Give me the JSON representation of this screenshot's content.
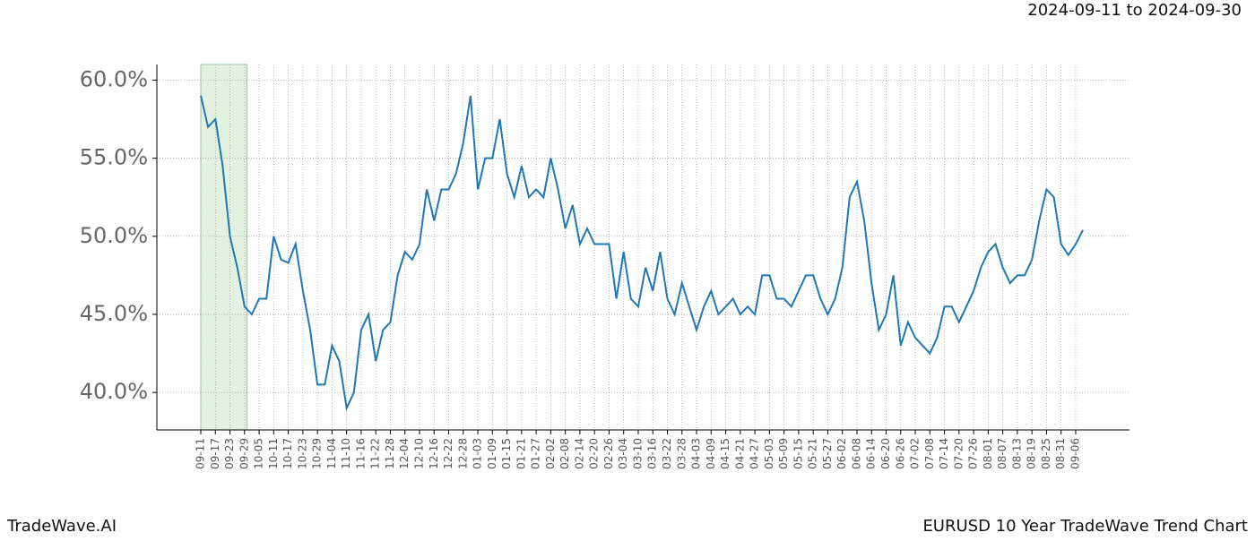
{
  "chart_data": {
    "type": "line",
    "subtitle": "2024-09-11 to 2024-09-30",
    "footer_left": "TradeWave.AI",
    "title": "EURUSD 10 Year TradeWave Trend Chart",
    "categories": [
      "09-11",
      null,
      "09-17",
      null,
      "09-23",
      null,
      "09-29",
      null,
      "10-05",
      null,
      "10-11",
      null,
      "10-17",
      null,
      "10-23",
      null,
      "10-29",
      null,
      "11-04",
      null,
      "11-10",
      null,
      "11-16",
      null,
      "11-22",
      null,
      "11-28",
      null,
      "12-04",
      null,
      "12-10",
      null,
      "12-16",
      null,
      "12-22",
      null,
      "12-28",
      null,
      "01-03",
      null,
      "01-09",
      null,
      "01-15",
      null,
      "01-21",
      null,
      "01-27",
      null,
      "02-02",
      null,
      "02-08",
      null,
      "02-14",
      null,
      "02-20",
      null,
      "02-26",
      null,
      "03-04",
      null,
      "03-10",
      null,
      "03-16",
      null,
      "03-22",
      null,
      "03-28",
      null,
      "04-03",
      null,
      "04-09",
      null,
      "04-15",
      null,
      "04-21",
      null,
      "04-27",
      null,
      "05-03",
      null,
      "05-09",
      null,
      "05-15",
      null,
      "05-21",
      null,
      "05-27",
      null,
      "06-02",
      null,
      "06-08",
      null,
      "06-14",
      null,
      "06-20",
      null,
      "06-26",
      null,
      "07-02",
      null,
      "07-08",
      null,
      "07-14",
      null,
      "07-20",
      null,
      "07-26",
      null,
      "08-01",
      null,
      "08-07",
      null,
      "08-13",
      null,
      "08-19",
      null,
      "08-25",
      null,
      "08-31",
      null,
      "09-06",
      null
    ],
    "values": [
      59,
      57,
      57.5,
      54.5,
      50,
      48,
      45.5,
      45,
      46,
      46,
      50,
      48.5,
      48.3,
      49.5,
      46.5,
      44,
      40.5,
      40.5,
      43,
      42,
      39,
      40,
      44,
      45,
      42,
      44,
      44.5,
      47.5,
      49,
      48.5,
      49.5,
      53,
      51,
      53,
      53,
      54,
      56,
      59,
      53,
      55,
      55,
      57.5,
      54,
      52.5,
      54.5,
      52.5,
      53,
      52.5,
      55,
      53,
      50.5,
      52,
      49.5,
      50.5,
      49.5,
      49.5,
      49.5,
      46,
      49,
      46,
      45.5,
      48,
      46.5,
      49,
      46,
      45,
      47,
      45.5,
      44,
      45.5,
      46.5,
      45,
      45.5,
      46,
      45,
      45.5,
      45,
      47.5,
      47.5,
      46,
      46,
      45.5,
      46.5,
      47.5,
      47.5,
      46,
      45,
      46,
      48,
      52.5,
      53.5,
      51,
      47,
      44,
      45,
      47.5,
      43,
      44.5,
      43.5,
      43,
      42.5,
      43.5,
      45.5,
      45.5,
      44.5,
      45.5,
      46.5,
      48,
      49,
      49.5,
      48,
      47,
      47.5,
      47.5,
      48.5,
      51,
      53,
      52.5,
      49.5,
      48.8,
      49.5,
      50.4
    ],
    "color": "#1f77b4",
    "shaded_range": [
      0,
      6.33
    ],
    "shaded_color": "#e3f1e1",
    "ylim": [
      37.6,
      61.0
    ],
    "yticks": [
      {
        "value": 40,
        "label": "40.0%"
      },
      {
        "value": 45,
        "label": "45.0%"
      },
      {
        "value": 50,
        "label": "50.0%"
      },
      {
        "value": 55,
        "label": "55.0%"
      },
      {
        "value": 60,
        "label": "60.0%"
      }
    ],
    "grid": true
  }
}
